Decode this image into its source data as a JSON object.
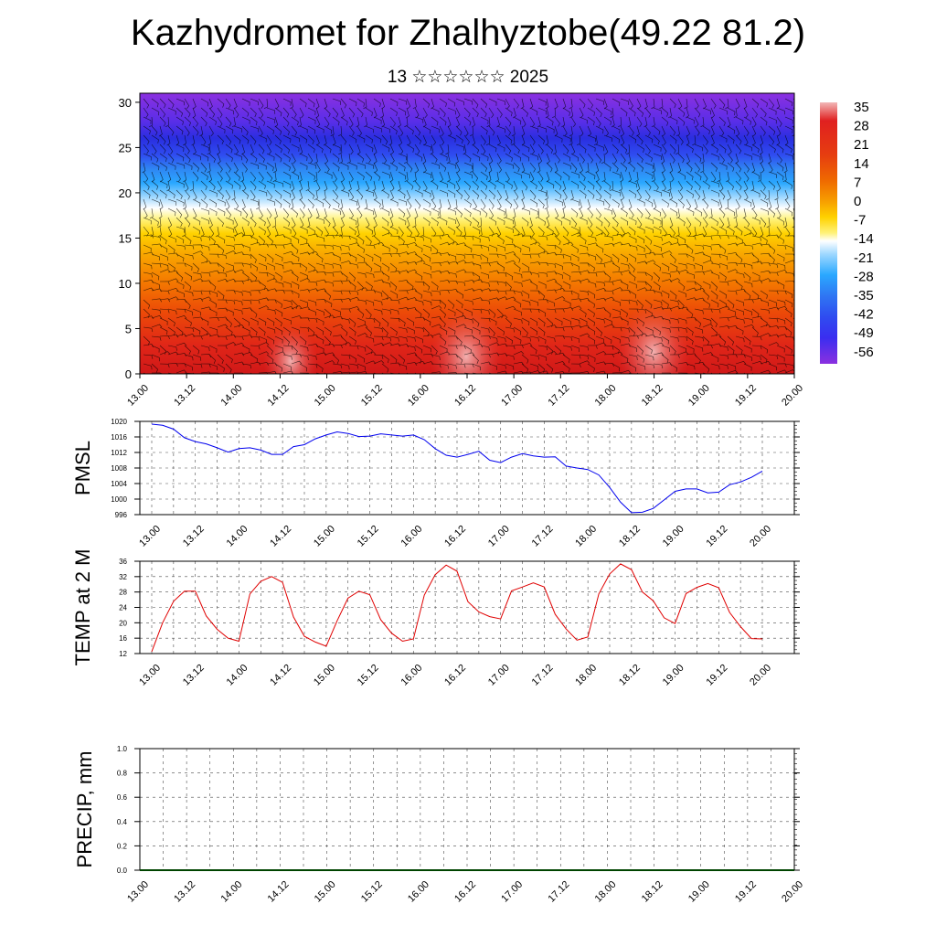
{
  "title": "Kazhydromet for Zhalhyztobe(49.22 81.2)",
  "subtitle": "13 ☆☆☆☆☆☆ 2025",
  "x_tick_labels": [
    "13.00",
    "13.12",
    "14.00",
    "14.12",
    "15.00",
    "15.12",
    "16.00",
    "16.12",
    "17.00",
    "17.12",
    "18.00",
    "18.12",
    "19.00",
    "19.12",
    "20.00"
  ],
  "chart_data": [
    {
      "type": "heatmap",
      "name_hint": "vertical cross-section (altitude vs time)",
      "y_range": [
        0,
        31
      ],
      "y_ticks": [
        0,
        5,
        10,
        15,
        20,
        25,
        30
      ],
      "x_range": [
        "13.00",
        "20.00"
      ],
      "colorbar": {
        "labels": [
          "35",
          "28",
          "21",
          "14",
          "7",
          "0",
          "-7",
          "-14",
          "-21",
          "-28",
          "-35",
          "-42",
          "-49",
          "-56"
        ],
        "colors": [
          "#f2b7b7",
          "#e02020",
          "#e63d10",
          "#ef6a00",
          "#f7a000",
          "#ffd200",
          "#fff27a",
          "#ffffff",
          "#9fd8ff",
          "#2aa8ff",
          "#2f76f3",
          "#2f4cf0",
          "#3a2ef0",
          "#7a2ee6",
          "#8b30e0"
        ]
      },
      "annotations": "wind barbs overlaid",
      "grid": false
    },
    {
      "type": "line",
      "ylabel": "PMSL",
      "ylim": [
        996,
        1020
      ],
      "y_ticks": [
        996,
        1000,
        1004,
        1008,
        1012,
        1016,
        1020
      ],
      "color": "#0000ee",
      "x_hours": [
        0,
        3,
        6,
        9,
        12,
        15,
        18,
        21,
        24,
        27,
        30,
        33,
        36,
        39,
        42,
        45,
        48,
        51,
        54,
        57,
        60,
        63,
        66,
        69,
        72,
        75,
        78,
        81,
        84,
        87,
        90,
        93,
        96,
        99,
        102,
        105,
        108,
        111,
        114,
        117,
        120,
        123,
        126,
        129,
        132,
        135,
        138,
        141,
        144,
        147,
        150,
        153,
        156,
        159,
        162,
        165,
        168
      ],
      "values": [
        1019.3,
        1019,
        1018,
        1015.8,
        1014.8,
        1014.2,
        1013.2,
        1012.1,
        1013,
        1013.2,
        1012.6,
        1011.5,
        1011.5,
        1013.5,
        1014,
        1015.5,
        1016.5,
        1017.3,
        1016.9,
        1016.1,
        1016.2,
        1016.8,
        1016.5,
        1016.2,
        1016.5,
        1015.3,
        1013,
        1011.3,
        1010.8,
        1011.5,
        1012.3,
        1010,
        1009.4,
        1010.8,
        1011.7,
        1011.1,
        1010.8,
        1010.9,
        1008.5,
        1008,
        1007.6,
        1006.2,
        1003,
        999.2,
        996.5,
        996.6,
        997.6,
        999.8,
        1002,
        1002.6,
        1002.6,
        1001.6,
        1001.8,
        1003.7,
        1004.4,
        1005.6,
        1007.2
      ],
      "grid": true
    },
    {
      "type": "line",
      "ylabel": "TEMP at 2 M",
      "ylim": [
        12,
        36
      ],
      "y_ticks": [
        12,
        16,
        20,
        24,
        28,
        32,
        36
      ],
      "color": "#e00000",
      "x_hours": [
        0,
        3,
        6,
        9,
        12,
        15,
        18,
        21,
        24,
        27,
        30,
        33,
        36,
        39,
        42,
        45,
        48,
        51,
        54,
        57,
        60,
        63,
        66,
        69,
        72,
        75,
        78,
        81,
        84,
        87,
        90,
        93,
        96,
        99,
        102,
        105,
        108,
        111,
        114,
        117,
        120,
        123,
        126,
        129,
        132,
        135,
        138,
        141,
        144,
        147,
        150,
        153,
        156,
        159,
        162,
        165,
        168
      ],
      "values": [
        12.5,
        20,
        25.6,
        28.2,
        28.2,
        21.8,
        18.3,
        16,
        15.2,
        27.5,
        30.8,
        32,
        30.5,
        21.5,
        16.5,
        15,
        13.9,
        20.5,
        26.4,
        28.2,
        27.3,
        20.8,
        17.3,
        15.2,
        15.8,
        27.2,
        32.5,
        35,
        33.4,
        25.5,
        22.8,
        21.6,
        21,
        28.3,
        29.3,
        30.4,
        29.3,
        22.2,
        18.4,
        15.5,
        16.3,
        27.5,
        32.7,
        35.3,
        33.8,
        28,
        25.7,
        21.3,
        19.8,
        27.6,
        29.2,
        30.2,
        29.1,
        22.7,
        19,
        15.9,
        15.8
      ],
      "grid": true
    },
    {
      "type": "line",
      "ylabel": "PRECIP, mm",
      "ylim": [
        0.0,
        1.0
      ],
      "y_ticks": [
        "0.0",
        "0.2",
        "0.4",
        "0.6",
        "0.8",
        "1.0"
      ],
      "color": "#004400",
      "x_hours": [
        0,
        168
      ],
      "values": [
        0,
        0
      ],
      "grid": true
    }
  ]
}
